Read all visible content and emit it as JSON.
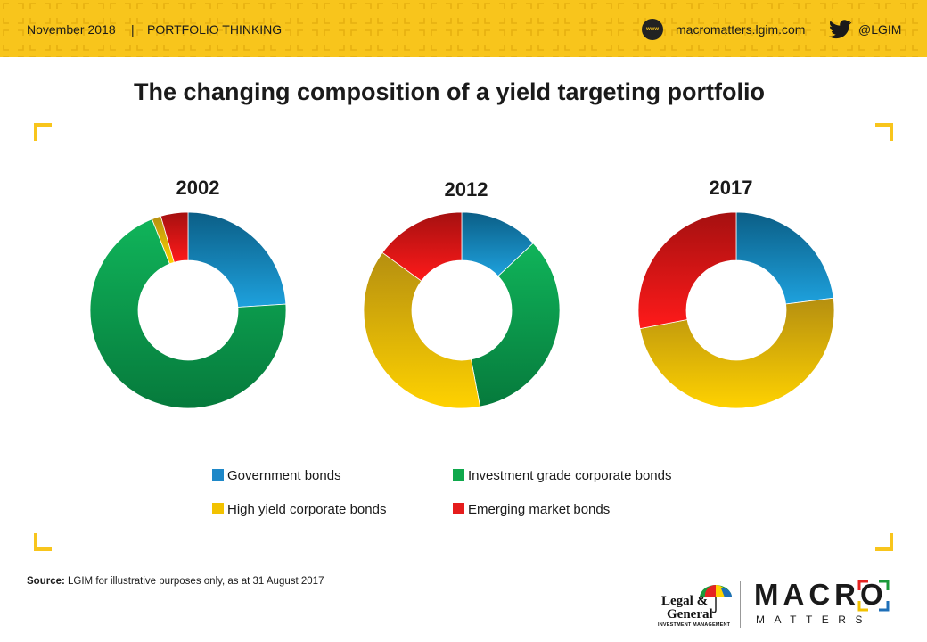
{
  "header": {
    "date": "November 2018",
    "separator": "|",
    "section": "PORTFOLIO THINKING",
    "www_label": "www",
    "website": "macromatters.lgim.com",
    "twitter_handle": "@LGIM",
    "accent_color": "#f8c51c"
  },
  "title": "The changing composition of a yield targeting portfolio",
  "chart_data": [
    {
      "type": "pie",
      "title": "2002",
      "donut": true,
      "categories": [
        "Government  bonds",
        "Investment  grade corporate bonds",
        "High yield corporate bonds",
        "Emerging market bonds"
      ],
      "values": [
        24,
        70,
        1.5,
        4.5
      ],
      "colors": [
        "#1e88c8",
        "#0fa84c",
        "#f2c200",
        "#e51c1c"
      ]
    },
    {
      "type": "pie",
      "title": "2012",
      "donut": true,
      "categories": [
        "Government  bonds",
        "Investment  grade corporate bonds",
        "High yield corporate bonds",
        "Emerging market bonds"
      ],
      "values": [
        13,
        34,
        38,
        15
      ],
      "colors": [
        "#1e88c8",
        "#0fa84c",
        "#f2c200",
        "#e51c1c"
      ]
    },
    {
      "type": "pie",
      "title": "2017",
      "donut": true,
      "categories": [
        "Government  bonds",
        "Investment  grade corporate bonds",
        "High yield corporate bonds",
        "Emerging market bonds"
      ],
      "values": [
        23,
        0,
        49,
        28
      ],
      "colors": [
        "#1e88c8",
        "#0fa84c",
        "#f2c200",
        "#e51c1c"
      ]
    }
  ],
  "legend": [
    {
      "label": "Government  bonds",
      "color": "#1e88c8"
    },
    {
      "label": "Investment  grade corporate bonds",
      "color": "#0fa84c"
    },
    {
      "label": "High yield corporate bonds",
      "color": "#f2c200"
    },
    {
      "label": "Emerging market bonds",
      "color": "#e51c1c"
    }
  ],
  "footer": {
    "source_label": "Source:",
    "source_text": " LGIM  for illustrative purposes only, as at 31 August 2017",
    "lg_name_1": "Legal &",
    "lg_name_2": "General",
    "lg_sub": "INVESTMENT MANAGEMENT",
    "macro": "MACRO",
    "matters": "MATTERS"
  }
}
